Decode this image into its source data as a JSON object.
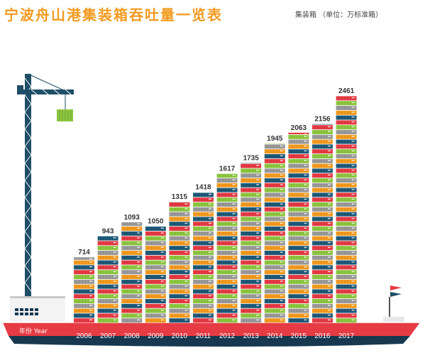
{
  "header": {
    "title": "宁波舟山港集装箱吞吐量一览表",
    "unit_note": "集装箱 （单位：万标准箱）"
  },
  "colors": {
    "title": "#f29a1f",
    "hull": "#e63b44",
    "hull_dark": "#17384f",
    "crane": "#1f4e66",
    "containers": [
      "#e63b44",
      "#f29a1f",
      "#8dc63f",
      "#1f5b7a",
      "#9a9a9a"
    ]
  },
  "chart_data": {
    "type": "bar",
    "title": "宁波舟山港集装箱吞吐量一览表",
    "unit": "集装箱 （单位：万标准箱）",
    "xlabel": "年份 Year",
    "ylabel": "",
    "categories": [
      "2006",
      "2007",
      "2008",
      "2009",
      "2010",
      "2011",
      "2012",
      "2013",
      "2014",
      "2015",
      "2016",
      "2017"
    ],
    "values": [
      714,
      943,
      1093,
      1050,
      1315,
      1418,
      1617,
      1735,
      1945,
      2063,
      2156,
      2461
    ],
    "ylim": [
      0,
      2461
    ],
    "grid": false,
    "legend": "none"
  }
}
